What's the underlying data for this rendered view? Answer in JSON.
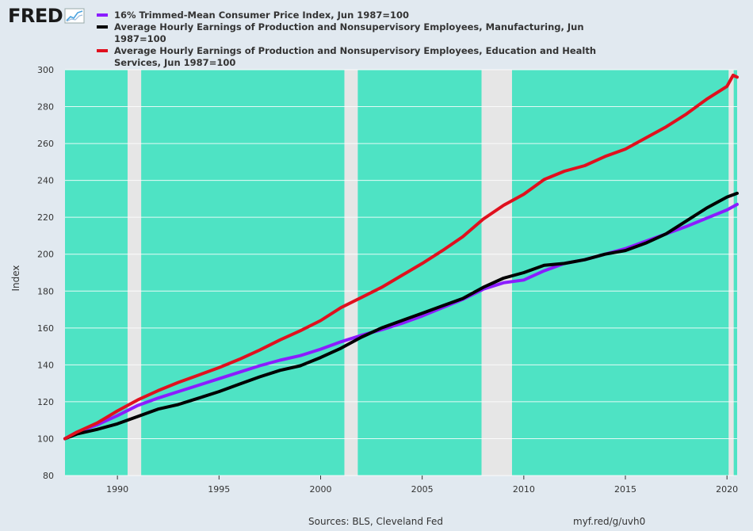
{
  "logo": {
    "text": "FRED"
  },
  "chart_data": {
    "type": "line",
    "ylabel": "Index",
    "xlabel": "",
    "xlim": [
      1987.42,
      2020.5
    ],
    "ylim": [
      80,
      300
    ],
    "yticks": [
      80,
      100,
      120,
      140,
      160,
      180,
      200,
      220,
      240,
      260,
      280,
      300
    ],
    "xticks": [
      1990,
      1995,
      2000,
      2005,
      2010,
      2015,
      2020
    ],
    "grid": true,
    "legend_position": "top-left",
    "plot_background": "#4ee3c4",
    "recessions": [
      [
        1990.5,
        1991.17
      ],
      [
        2001.17,
        2001.83
      ],
      [
        2007.92,
        2009.42
      ],
      [
        2020.08,
        2020.33
      ]
    ],
    "recession_color": "#e6e6e6",
    "series": [
      {
        "name": "16% Trimmed-Mean Consumer Price Index, Jun 1987=100",
        "color": "#8b1cff",
        "x": [
          1987.42,
          1988,
          1989,
          1990,
          1991,
          1992,
          1993,
          1994,
          1995,
          1996,
          1997,
          1998,
          1999,
          2000,
          2001,
          2002,
          2003,
          2004,
          2005,
          2006,
          2007,
          2008,
          2009,
          2010,
          2011,
          2012,
          2013,
          2014,
          2015,
          2016,
          2017,
          2018,
          2019,
          2020,
          2020.5
        ],
        "values": [
          100,
          103.5,
          107.5,
          112.5,
          118,
          122,
          125.5,
          129,
          132.5,
          136,
          139.5,
          142.5,
          145,
          148.5,
          152.5,
          156,
          159,
          162.5,
          166.5,
          171,
          175.5,
          181,
          184.5,
          186,
          191,
          195,
          197,
          200,
          203,
          207,
          211,
          215,
          219.5,
          224,
          227
        ]
      },
      {
        "name": "Average Hourly Earnings of Production and Nonsupervisory Employees, Manufacturing, Jun 1987=100",
        "color": "#000000",
        "x": [
          1987.42,
          1988,
          1989,
          1990,
          1991,
          1992,
          1993,
          1994,
          1995,
          1996,
          1997,
          1998,
          1999,
          2000,
          2001,
          2002,
          2003,
          2004,
          2005,
          2006,
          2007,
          2008,
          2009,
          2010,
          2011,
          2012,
          2013,
          2014,
          2015,
          2016,
          2017,
          2018,
          2019,
          2020,
          2020.5
        ],
        "values": [
          100,
          102.5,
          105,
          108,
          112,
          116,
          118.5,
          122,
          125.5,
          129.5,
          133.5,
          137,
          139.5,
          144,
          149,
          155,
          160,
          164,
          168,
          172,
          176,
          182,
          187,
          190,
          194,
          195,
          197,
          200,
          202,
          206,
          211,
          218,
          225,
          231,
          233
        ]
      },
      {
        "name": "Average Hourly Earnings of Production and Nonsupervisory Employees, Education and Health Services, Jun 1987=100",
        "color": "#e0101e",
        "x": [
          1987.42,
          1988,
          1989,
          1990,
          1991,
          1992,
          1993,
          1994,
          1995,
          1996,
          1997,
          1998,
          1999,
          2000,
          2001,
          2002,
          2003,
          2004,
          2005,
          2006,
          2007,
          2008,
          2009,
          2010,
          2011,
          2012,
          2013,
          2014,
          2015,
          2016,
          2017,
          2018,
          2019,
          2020,
          2020.3,
          2020.5
        ],
        "values": [
          100,
          103.5,
          108.5,
          115,
          121,
          126,
          130.5,
          134.5,
          138.5,
          143,
          148,
          153.5,
          158.5,
          164,
          171,
          176.5,
          182,
          188.5,
          195,
          202,
          209.5,
          219,
          226.5,
          232.5,
          240.5,
          245,
          248,
          253,
          257,
          263,
          269,
          276,
          284,
          291,
          297,
          296
        ]
      }
    ]
  },
  "footer": {
    "sources": "Sources: BLS, Cleveland Fed",
    "link": "myf.red/g/uvh0"
  }
}
